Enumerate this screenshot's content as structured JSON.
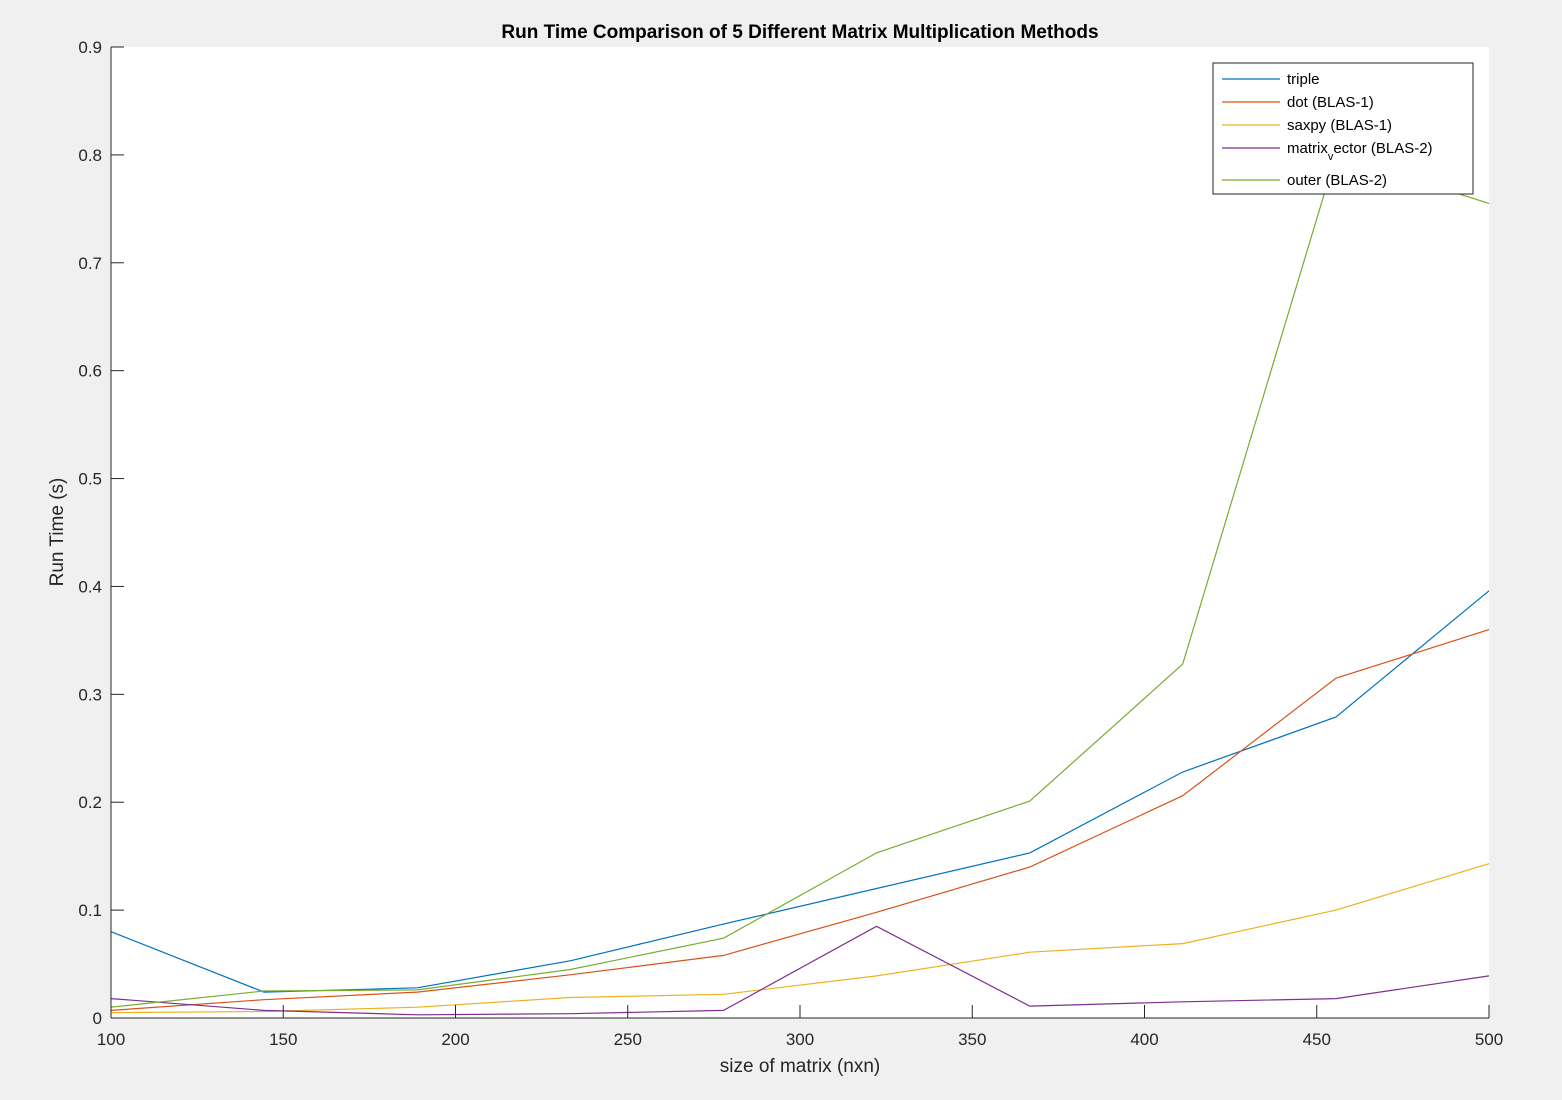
{
  "chart_data": {
    "type": "line",
    "title": "Run Time Comparison of 5 Different Matrix Multiplication Methods",
    "xlabel": "size of matrix (nxn)",
    "ylabel": "Run Time (s)",
    "xlim": [
      100,
      500
    ],
    "ylim": [
      0,
      0.9
    ],
    "xticks": [
      100,
      150,
      200,
      250,
      300,
      350,
      400,
      450,
      500
    ],
    "yticks": [
      0,
      0.1,
      0.2,
      0.3,
      0.4,
      0.5,
      0.6,
      0.7,
      0.8,
      0.9
    ],
    "xtick_labels": [
      "100",
      "150",
      "200",
      "250",
      "300",
      "350",
      "400",
      "450",
      "500"
    ],
    "ytick_labels": [
      "0",
      "0.1",
      "0.2",
      "0.3",
      "0.4",
      "0.5",
      "0.6",
      "0.7",
      "0.8",
      "0.9"
    ],
    "grid": false,
    "legend_position": "top-right",
    "x": [
      100,
      144.4,
      188.9,
      233.3,
      277.8,
      322.2,
      366.7,
      411.1,
      455.6,
      500
    ],
    "series": [
      {
        "name": "triple",
        "legend_main": "triple",
        "legend_sub": "",
        "legend_rest": "",
        "color": "#0072bd",
        "values": [
          0.08,
          0.024,
          0.028,
          0.053,
          0.087,
          0.12,
          0.153,
          0.228,
          0.279,
          0.396
        ]
      },
      {
        "name": "dot (BLAS-1)",
        "legend_main": "dot (BLAS-1)",
        "legend_sub": "",
        "legend_rest": "",
        "color": "#d95319",
        "values": [
          0.007,
          0.017,
          0.024,
          0.04,
          0.058,
          0.098,
          0.14,
          0.206,
          0.315,
          0.36
        ]
      },
      {
        "name": "saxpy (BLAS-1)",
        "legend_main": "saxpy (BLAS-1)",
        "legend_sub": "",
        "legend_rest": "",
        "color": "#edb120",
        "values": [
          0.005,
          0.006,
          0.01,
          0.019,
          0.022,
          0.039,
          0.061,
          0.069,
          0.1,
          0.143
        ]
      },
      {
        "name": "matrix_vector (BLAS-2)",
        "legend_main": "matrix",
        "legend_sub": "v",
        "legend_rest": "ector (BLAS-2)",
        "color": "#7e2f8e",
        "values": [
          0.018,
          0.007,
          0.003,
          0.004,
          0.007,
          0.085,
          0.011,
          0.015,
          0.018,
          0.039
        ]
      },
      {
        "name": "outer (BLAS-2)",
        "legend_main": "outer (BLAS-2)",
        "legend_sub": "",
        "legend_rest": "",
        "color": "#77ac30",
        "values": [
          0.01,
          0.025,
          0.026,
          0.045,
          0.074,
          0.153,
          0.201,
          0.328,
          0.8,
          0.755
        ]
      }
    ]
  }
}
